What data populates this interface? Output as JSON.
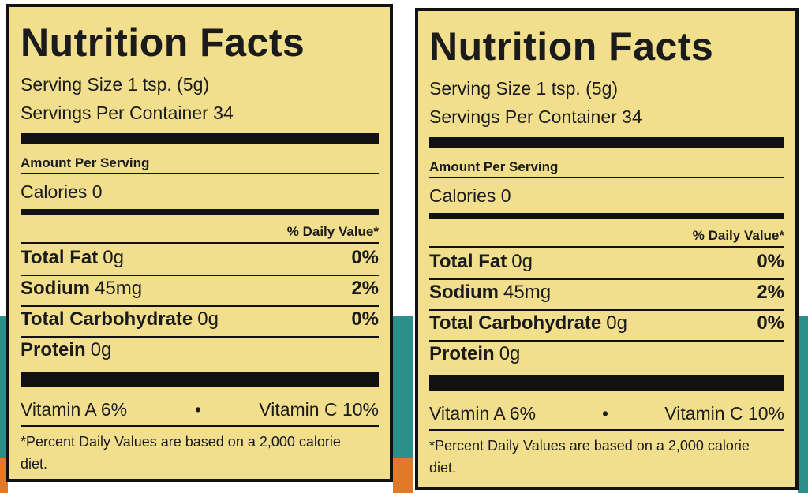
{
  "labels": [
    {
      "title": "Nutrition Facts",
      "serving_size": "Serving Size 1 tsp. (5g)",
      "servings_per_container": "Servings Per Container 34",
      "amount_per_serving": "Amount Per Serving",
      "calories": "Calories 0",
      "daily_value_header": "% Daily Value*",
      "nutrients": [
        {
          "name": "Total Fat",
          "amount": "0g",
          "percent": "0%"
        },
        {
          "name": "Sodium",
          "amount": "45mg",
          "percent": "2%"
        },
        {
          "name": "Total Carbohydrate",
          "amount": "0g",
          "percent": "0%"
        },
        {
          "name": "Protein",
          "amount": "0g"
        }
      ],
      "vitamins": [
        "Vitamin A 6%",
        "•",
        "Vitamin C 10%"
      ],
      "footnote": "*Percent Daily Values are based on a 2,000 calorie diet."
    },
    {
      "title": "Nutrition Facts",
      "serving_size": "Serving Size 1 tsp. (5g)",
      "servings_per_container": "Servings Per Container 34",
      "amount_per_serving": "Amount Per Serving",
      "calories": "Calories 0",
      "daily_value_header": "% Daily Value*",
      "nutrients": [
        {
          "name": "Total Fat",
          "amount": "0g",
          "percent": "0%"
        },
        {
          "name": "Sodium",
          "amount": "45mg",
          "percent": "2%"
        },
        {
          "name": "Total Carbohydrate",
          "amount": "0g",
          "percent": "0%"
        },
        {
          "name": "Protein",
          "amount": "0g"
        }
      ],
      "vitamins": [
        "Vitamin A 6%",
        "•",
        "Vitamin C 10%"
      ],
      "footnote": "*Percent Daily Values are based on a 2,000 calorie diet."
    }
  ]
}
